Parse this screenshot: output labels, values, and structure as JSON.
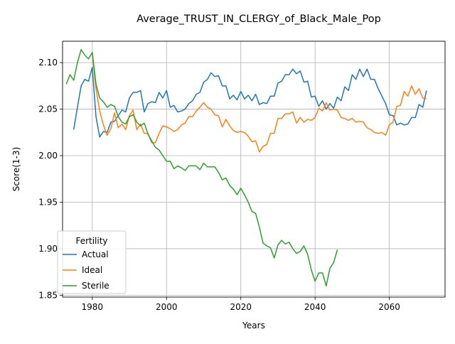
{
  "chart_data": {
    "type": "line",
    "title": "Average_TRUST_IN_CLERGY_of_Black_Male_Pop",
    "xlabel": "Years",
    "ylabel": "Score(1-3)",
    "xlim": [
      1972,
      2075
    ],
    "ylim": [
      1.848,
      2.123
    ],
    "x_ticks": [
      1980,
      2000,
      2020,
      2040,
      2060
    ],
    "y_ticks": [
      1.85,
      1.9,
      1.95,
      2.0,
      2.05,
      2.1
    ],
    "y_tick_labels": [
      "1.85",
      "1.90",
      "1.95",
      "2.00",
      "2.05",
      "2.10"
    ],
    "grid": true,
    "legend": {
      "title": "Fertility",
      "placement": "lower-left"
    },
    "series": [
      {
        "name": "Actual",
        "color": "#1f77b4",
        "x": [
          1975,
          1976,
          1977,
          1978,
          1979,
          1980,
          1981,
          1982,
          1983,
          1984,
          1985,
          1986,
          1987,
          1988,
          1989,
          1990,
          1991,
          1992,
          1993,
          1994,
          1995,
          1996,
          1997,
          1998,
          1999,
          2000,
          2001,
          2002,
          2003,
          2004,
          2005,
          2006,
          2007,
          2008,
          2009,
          2010,
          2011,
          2012,
          2013,
          2014,
          2015,
          2016,
          2017,
          2018,
          2019,
          2020,
          2021,
          2022,
          2023,
          2024,
          2025,
          2026,
          2027,
          2028,
          2029,
          2030,
          2031,
          2032,
          2033,
          2034,
          2035,
          2036,
          2037,
          2038,
          2039,
          2040,
          2041,
          2042,
          2043,
          2044,
          2045,
          2046,
          2047,
          2048,
          2049,
          2050,
          2051,
          2052,
          2053,
          2054,
          2055,
          2056,
          2057,
          2058,
          2059,
          2060,
          2061,
          2062,
          2063,
          2064,
          2065,
          2066,
          2067,
          2068,
          2069,
          2070
        ],
        "values": [
          2.028,
          2.052,
          2.075,
          2.082,
          2.08,
          2.095,
          2.042,
          2.02,
          2.026,
          2.025,
          2.036,
          2.037,
          2.043,
          2.049,
          2.047,
          2.062,
          2.068,
          2.068,
          2.07,
          2.047,
          2.056,
          2.058,
          2.057,
          2.068,
          2.062,
          2.07,
          2.052,
          2.054,
          2.047,
          2.048,
          2.05,
          2.056,
          2.059,
          2.066,
          2.068,
          2.079,
          2.082,
          2.089,
          2.085,
          2.086,
          2.075,
          2.075,
          2.061,
          2.065,
          2.06,
          2.069,
          2.061,
          2.065,
          2.059,
          2.066,
          2.055,
          2.057,
          2.056,
          2.064,
          2.064,
          2.078,
          2.08,
          2.087,
          2.087,
          2.093,
          2.088,
          2.091,
          2.079,
          2.08,
          2.063,
          2.064,
          2.053,
          2.059,
          2.05,
          2.056,
          2.051,
          2.063,
          2.059,
          2.074,
          2.07,
          2.087,
          2.082,
          2.093,
          2.085,
          2.093,
          2.082,
          2.082,
          2.072,
          2.064,
          2.056,
          2.044,
          2.043,
          2.033,
          2.035,
          2.033,
          2.034,
          2.041,
          2.041,
          2.055,
          2.052,
          2.07
        ]
      },
      {
        "name": "Ideal",
        "color": "#ff7f0e",
        "x": [
          1980,
          1981,
          1982,
          1983,
          1984,
          1985,
          1986,
          1987,
          1988,
          1989,
          1990,
          1991,
          1992,
          1993,
          1994,
          1995,
          1996,
          1997,
          1998,
          1999,
          2000,
          2001,
          2002,
          2003,
          2004,
          2005,
          2006,
          2007,
          2008,
          2009,
          2010,
          2011,
          2012,
          2013,
          2014,
          2015,
          2016,
          2017,
          2018,
          2019,
          2020,
          2021,
          2022,
          2023,
          2024,
          2025,
          2026,
          2027,
          2028,
          2029,
          2030,
          2031,
          2032,
          2033,
          2034,
          2035,
          2036,
          2037,
          2038,
          2039,
          2040,
          2041,
          2042,
          2043,
          2044,
          2045,
          2046,
          2047,
          2048,
          2049,
          2050,
          2051,
          2052,
          2053,
          2054,
          2055,
          2056,
          2057,
          2058,
          2059,
          2060,
          2061,
          2062,
          2063,
          2064,
          2065,
          2066,
          2067,
          2068,
          2069,
          2070
        ],
        "values": [
          2.11,
          2.072,
          2.048,
          2.033,
          2.022,
          2.029,
          2.046,
          2.03,
          2.034,
          2.028,
          2.043,
          2.049,
          2.028,
          2.034,
          2.024,
          2.024,
          2.014,
          2.014,
          2.024,
          2.032,
          2.031,
          2.029,
          2.026,
          2.028,
          2.033,
          2.035,
          2.042,
          2.042,
          2.048,
          2.052,
          2.057,
          2.052,
          2.05,
          2.044,
          2.043,
          2.031,
          2.039,
          2.032,
          2.027,
          2.025,
          2.026,
          2.025,
          2.021,
          2.015,
          2.016,
          2.004,
          2.01,
          2.012,
          2.024,
          2.024,
          2.04,
          2.04,
          2.045,
          2.045,
          2.047,
          2.035,
          2.041,
          2.036,
          2.039,
          2.038,
          2.041,
          2.051,
          2.048,
          2.057,
          2.049,
          2.05,
          2.049,
          2.041,
          2.04,
          2.038,
          2.04,
          2.036,
          2.037,
          2.036,
          2.03,
          2.028,
          2.025,
          2.024,
          2.025,
          2.022,
          2.033,
          2.036,
          2.053,
          2.054,
          2.069,
          2.064,
          2.075,
          2.066,
          2.072,
          2.062,
          2.061
        ]
      },
      {
        "name": "Sterile",
        "color": "#2ca02c",
        "x": [
          1973,
          1974,
          1975,
          1976,
          1977,
          1978,
          1979,
          1980,
          1981,
          1982,
          1983,
          1984,
          1985,
          1986,
          1987,
          1988,
          1989,
          1990,
          1991,
          1992,
          1993,
          1994,
          1995,
          1996,
          1997,
          1998,
          1999,
          2000,
          2001,
          2002,
          2003,
          2004,
          2005,
          2006,
          2007,
          2008,
          2009,
          2010,
          2011,
          2012,
          2013,
          2014,
          2015,
          2016,
          2017,
          2018,
          2019,
          2020,
          2021,
          2022,
          2023,
          2024,
          2025,
          2026,
          2027,
          2028,
          2029,
          2030,
          2031,
          2032,
          2033,
          2034,
          2035,
          2036,
          2037,
          2038,
          2039,
          2040,
          2041,
          2042,
          2043,
          2044,
          2045,
          2046
        ],
        "values": [
          2.077,
          2.087,
          2.081,
          2.1,
          2.114,
          2.108,
          2.104,
          2.111,
          2.077,
          2.062,
          2.058,
          2.052,
          2.055,
          2.053,
          2.042,
          2.036,
          2.034,
          2.042,
          2.044,
          2.036,
          2.032,
          2.035,
          2.023,
          2.016,
          2.009,
          2.006,
          2.0,
          1.994,
          1.994,
          1.986,
          1.989,
          1.987,
          1.984,
          1.989,
          1.989,
          1.989,
          1.985,
          1.992,
          1.988,
          1.988,
          1.988,
          1.982,
          1.974,
          1.976,
          1.968,
          1.964,
          1.958,
          1.965,
          1.958,
          1.95,
          1.94,
          1.938,
          1.923,
          1.906,
          1.903,
          1.901,
          1.89,
          1.904,
          1.909,
          1.905,
          1.907,
          1.9,
          1.895,
          1.897,
          1.903,
          1.894,
          1.877,
          1.865,
          1.874,
          1.874,
          1.86,
          1.879,
          1.885,
          1.899
        ]
      }
    ]
  }
}
